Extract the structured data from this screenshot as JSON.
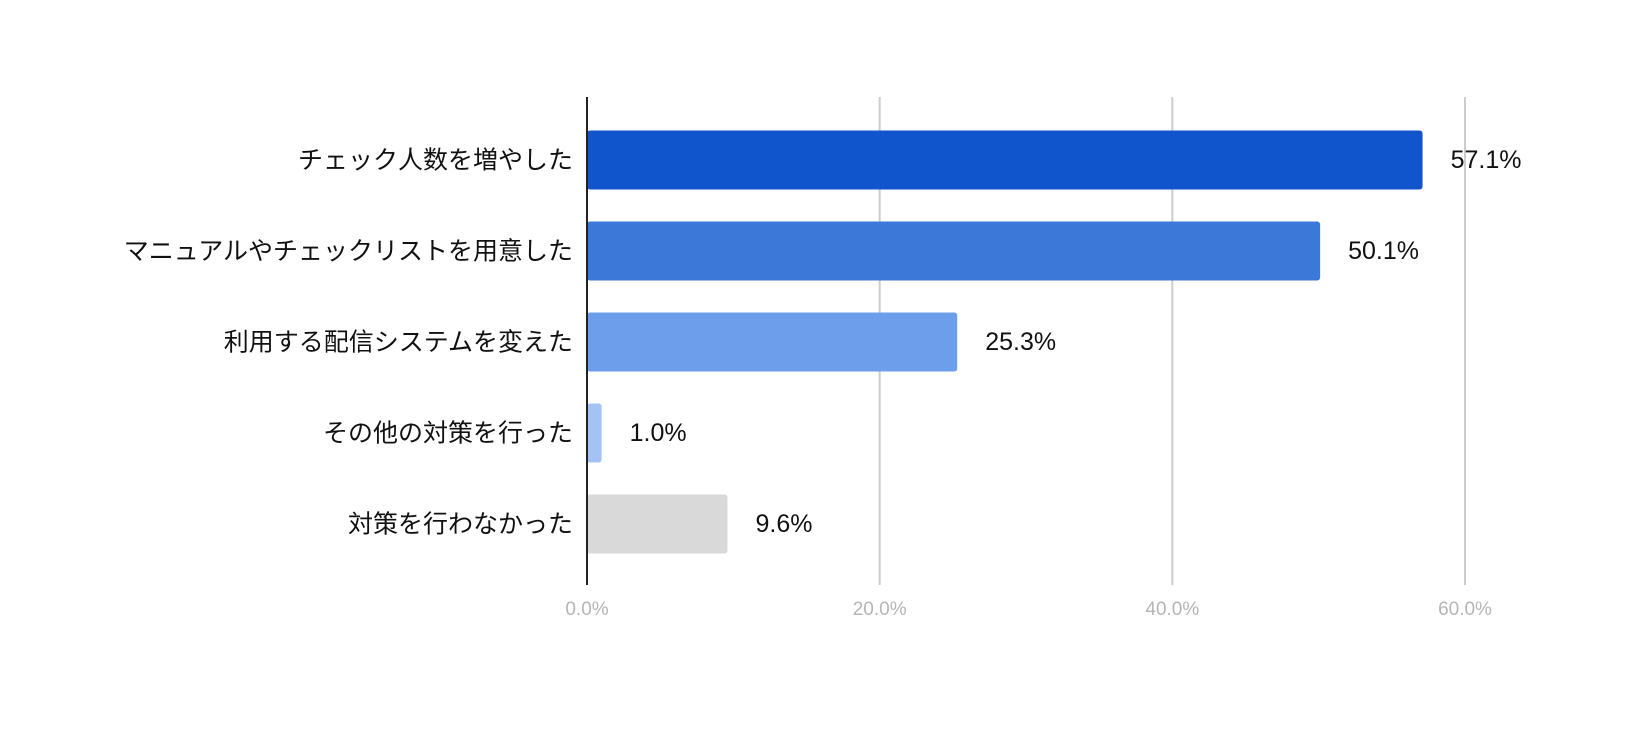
{
  "chart_data": {
    "type": "bar",
    "orientation": "horizontal",
    "title": "",
    "xlabel": "",
    "ylabel": "",
    "categories": [
      "チェック人数を増やした",
      "マニュアルやチェックリストを用意した",
      "利用する配信システムを変えた",
      "その他の対策を行った",
      "対策を行わなかった"
    ],
    "values": [
      57.1,
      50.1,
      25.3,
      1.0,
      9.6
    ],
    "value_labels": [
      "57.1%",
      "50.1%",
      "25.3%",
      "1.0%",
      "9.6%"
    ],
    "bar_colors": [
      "#1155cc",
      "#3c78d8",
      "#6d9eeb",
      "#a4c2f4",
      "#d9d9d9"
    ],
    "xlim": [
      0,
      60
    ],
    "x_ticks": [
      0,
      20,
      40,
      60
    ],
    "x_tick_labels": [
      "0.0%",
      "20.0%",
      "40.0%",
      "60.0%"
    ],
    "grid": true,
    "legend": "none"
  }
}
